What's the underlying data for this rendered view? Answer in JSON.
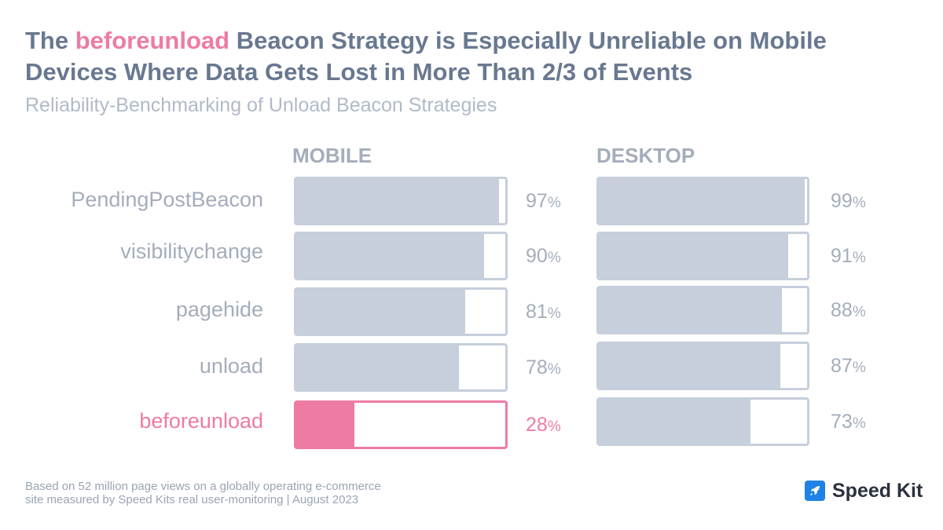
{
  "title": {
    "pre": "The ",
    "highlight": "beforeunload",
    "post": " Beacon Strategy is Especially Unreliable on Mobile Devices Where Data Gets Lost in More Than 2/3 of Events"
  },
  "subtitle": "Reliability-Benchmarking of Unload Beacon Strategies",
  "colors": {
    "text": "#687890",
    "muted": "#a4adbb",
    "bar": "#c6cfdb",
    "highlight": "#ee7ba4"
  },
  "chart_data": {
    "type": "bar",
    "orientation": "horizontal",
    "unit": "%",
    "xlim": [
      0,
      100
    ],
    "grid": false,
    "categories": [
      "PendingPostBeacon",
      "visibilitychange",
      "pagehide",
      "unload",
      "beforeunload"
    ],
    "highlight_category": "beforeunload",
    "series": [
      {
        "name": "MOBILE",
        "values": [
          97,
          90,
          81,
          78,
          28
        ]
      },
      {
        "name": "DESKTOP",
        "values": [
          99,
          91,
          88,
          87,
          73
        ]
      }
    ]
  },
  "footnote": {
    "line1": "Based on 52 million page views on a globally operating e-commerce",
    "line2": "site measured by Speed Kits real user-monitoring | August 2023"
  },
  "brand": {
    "name": "Speed Kit",
    "icon": "rocket-icon"
  }
}
